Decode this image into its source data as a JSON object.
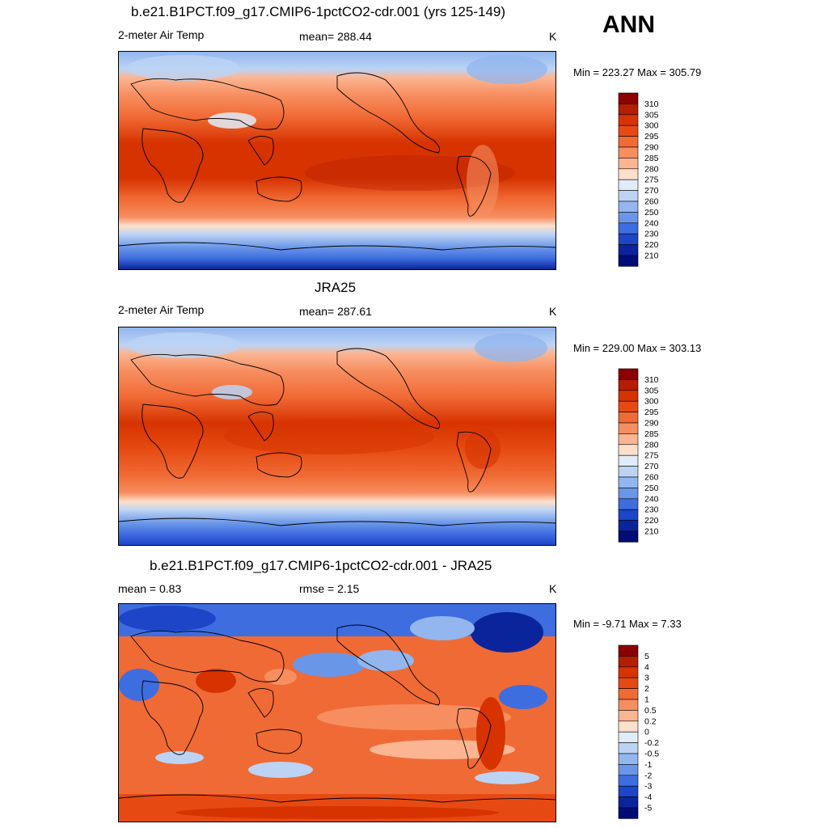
{
  "season": "ANN",
  "panels": [
    {
      "title": "b.e21.B1PCT.f09_g17.CMIP6-1pctCO2-cdr.001 (yrs 125-149)",
      "left_label": "2-meter Air Temp",
      "center_label": "mean= 288.44",
      "units": "K",
      "minmax": "Min = 223.27 Max = 305.79",
      "colorbar": {
        "labels": [
          "310",
          "305",
          "300",
          "295",
          "290",
          "285",
          "280",
          "275",
          "270",
          "260",
          "250",
          "240",
          "230",
          "220",
          "210"
        ],
        "colors": [
          "#8b0000",
          "#b51d00",
          "#d63300",
          "#e64a12",
          "#f06a35",
          "#f78e60",
          "#fbb592",
          "#fde0cc",
          "#e0ecf9",
          "#bcd3f4",
          "#93b6ee",
          "#6a96e8",
          "#3e6de0",
          "#1c45c8",
          "#0a259c",
          "#000c78"
        ]
      }
    },
    {
      "title": "JRA25",
      "left_label": "2-meter Air Temp",
      "center_label": "mean= 287.61",
      "units": "K",
      "minmax": "Min = 229.00 Max = 303.13",
      "colorbar": {
        "labels": [
          "310",
          "305",
          "300",
          "295",
          "290",
          "285",
          "280",
          "275",
          "270",
          "260",
          "250",
          "240",
          "230",
          "220",
          "210"
        ],
        "colors": [
          "#8b0000",
          "#b51d00",
          "#d63300",
          "#e64a12",
          "#f06a35",
          "#f78e60",
          "#fbb592",
          "#fde0cc",
          "#e0ecf9",
          "#bcd3f4",
          "#93b6ee",
          "#6a96e8",
          "#3e6de0",
          "#1c45c8",
          "#0a259c",
          "#000c78"
        ]
      }
    },
    {
      "title": "b.e21.B1PCT.f09_g17.CMIP6-1pctCO2-cdr.001 - JRA25",
      "left_label": "mean =   0.83",
      "center_label": "rmse =   2.15",
      "units": "K",
      "minmax": "Min =  -9.71 Max =   7.33",
      "colorbar": {
        "labels": [
          "5",
          "4",
          "3",
          "2",
          "1",
          "0.5",
          "0.2",
          "0",
          "-0.2",
          "-0.5",
          "-1",
          "-2",
          "-3",
          "-4",
          "-5"
        ],
        "colors": [
          "#8b0000",
          "#b51d00",
          "#d63300",
          "#e64a12",
          "#f06a35",
          "#f78e60",
          "#fbb592",
          "#fde0cc",
          "#e0ecf9",
          "#bcd3f4",
          "#93b6ee",
          "#6a96e8",
          "#3e6de0",
          "#1c45c8",
          "#0a259c",
          "#000c78"
        ]
      }
    }
  ]
}
